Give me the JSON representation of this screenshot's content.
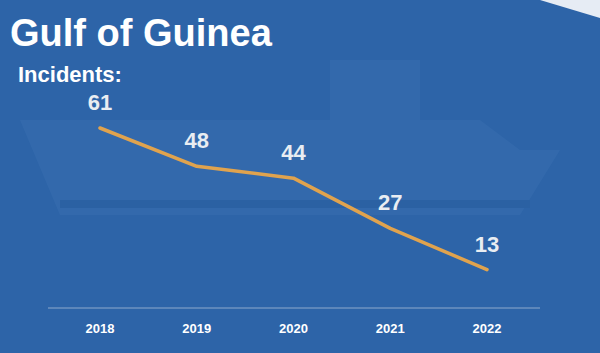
{
  "chart_data": {
    "type": "line",
    "title": "Gulf of Guinea",
    "subtitle": "Incidents:",
    "categories": [
      "2018",
      "2019",
      "2020",
      "2021",
      "2022"
    ],
    "values": [
      61,
      48,
      44,
      27,
      13
    ],
    "color": "#e0a34e",
    "ylim": [
      0,
      61
    ],
    "tick_labels": "x",
    "data_labels": true,
    "grid": false
  }
}
